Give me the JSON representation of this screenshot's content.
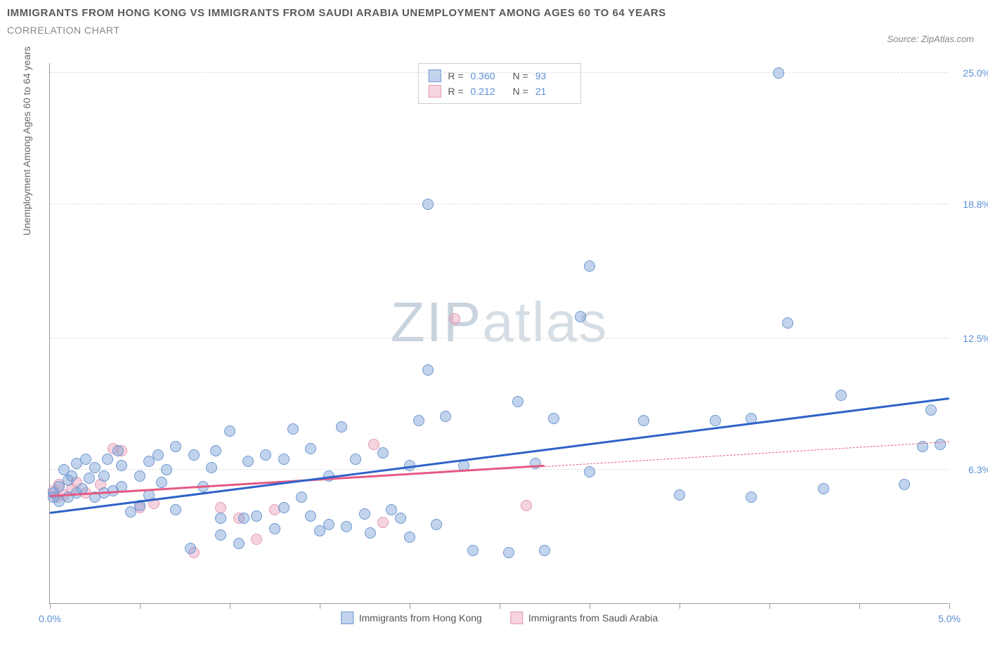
{
  "title": "IMMIGRANTS FROM HONG KONG VS IMMIGRANTS FROM SAUDI ARABIA UNEMPLOYMENT AMONG AGES 60 TO 64 YEARS",
  "subtitle": "CORRELATION CHART",
  "source_label": "Source: ZipAtlas.com",
  "y_axis_label": "Unemployment Among Ages 60 to 64 years",
  "watermark_a": "ZIP",
  "watermark_b": "atlas",
  "colors": {
    "series_a_fill": "rgba(120,160,215,0.45)",
    "series_a_stroke": "#6f97cf",
    "series_b_fill": "rgba(235,160,185,0.45)",
    "series_b_stroke": "#e49ab3",
    "trend_a": "#2e62c9",
    "trend_b": "#e55a82",
    "tick_label": "#5b8fd6",
    "grid": "#dddddd"
  },
  "marker_radius": 8,
  "x_axis": {
    "min": 0.0,
    "max": 5.0,
    "ticks": [
      0.0,
      0.5,
      1.0,
      1.5,
      2.0,
      2.5,
      3.0,
      3.5,
      4.0,
      4.5,
      5.0
    ],
    "labeled_ticks": [
      {
        "v": 0.0,
        "label": "0.0%"
      },
      {
        "v": 5.0,
        "label": "5.0%"
      }
    ]
  },
  "y_axis": {
    "min": 0.0,
    "max": 25.5,
    "gridlines": [
      {
        "v": 6.3,
        "label": "6.3%"
      },
      {
        "v": 12.5,
        "label": "12.5%"
      },
      {
        "v": 18.8,
        "label": "18.8%"
      },
      {
        "v": 25.0,
        "label": "25.0%"
      }
    ]
  },
  "stats": [
    {
      "series": "a",
      "R": "0.360",
      "N": "93"
    },
    {
      "series": "b",
      "R": "0.212",
      "N": "21"
    }
  ],
  "bottom_legend": [
    {
      "series": "a",
      "label": "Immigrants from Hong Kong"
    },
    {
      "series": "b",
      "label": "Immigrants from Saudi Arabia"
    }
  ],
  "trend_lines": {
    "a": {
      "x1": 0.0,
      "y1": 4.2,
      "x2": 5.0,
      "y2": 9.6,
      "solid_until_x": 5.0
    },
    "b": {
      "x1": 0.0,
      "y1": 5.0,
      "x2": 5.0,
      "y2": 7.6,
      "solid_until_x": 2.75
    }
  },
  "series_a_points": [
    [
      0.02,
      5.2
    ],
    [
      0.05,
      5.5
    ],
    [
      0.05,
      4.8
    ],
    [
      0.08,
      6.3
    ],
    [
      0.1,
      5.0
    ],
    [
      0.1,
      5.8
    ],
    [
      0.12,
      6.0
    ],
    [
      0.15,
      6.6
    ],
    [
      0.15,
      5.2
    ],
    [
      0.02,
      5.0
    ],
    [
      0.18,
      5.4
    ],
    [
      0.2,
      6.8
    ],
    [
      0.22,
      5.9
    ],
    [
      0.25,
      5.0
    ],
    [
      0.25,
      6.4
    ],
    [
      0.3,
      5.2
    ],
    [
      0.3,
      6.0
    ],
    [
      0.32,
      6.8
    ],
    [
      0.35,
      5.3
    ],
    [
      0.38,
      7.2
    ],
    [
      0.4,
      5.5
    ],
    [
      0.4,
      6.5
    ],
    [
      0.45,
      4.3
    ],
    [
      0.5,
      6.0
    ],
    [
      0.5,
      4.6
    ],
    [
      0.55,
      6.7
    ],
    [
      0.55,
      5.1
    ],
    [
      0.6,
      7.0
    ],
    [
      0.62,
      5.7
    ],
    [
      0.65,
      6.3
    ],
    [
      0.7,
      7.4
    ],
    [
      0.7,
      4.4
    ],
    [
      0.78,
      2.6
    ],
    [
      0.8,
      7.0
    ],
    [
      0.85,
      5.5
    ],
    [
      0.9,
      6.4
    ],
    [
      0.92,
      7.2
    ],
    [
      0.95,
      3.2
    ],
    [
      0.95,
      4.0
    ],
    [
      1.0,
      8.1
    ],
    [
      1.05,
      2.8
    ],
    [
      1.08,
      4.0
    ],
    [
      1.1,
      6.7
    ],
    [
      1.15,
      4.1
    ],
    [
      1.2,
      7.0
    ],
    [
      1.25,
      3.5
    ],
    [
      1.3,
      6.8
    ],
    [
      1.3,
      4.5
    ],
    [
      1.35,
      8.2
    ],
    [
      1.4,
      5.0
    ],
    [
      1.45,
      7.3
    ],
    [
      1.45,
      4.1
    ],
    [
      1.5,
      3.4
    ],
    [
      1.55,
      6.0
    ],
    [
      1.55,
      3.7
    ],
    [
      1.62,
      8.3
    ],
    [
      1.65,
      3.6
    ],
    [
      1.7,
      6.8
    ],
    [
      1.75,
      4.2
    ],
    [
      1.78,
      3.3
    ],
    [
      1.85,
      7.1
    ],
    [
      1.9,
      4.4
    ],
    [
      1.95,
      4.0
    ],
    [
      2.0,
      6.5
    ],
    [
      2.0,
      3.1
    ],
    [
      2.05,
      8.6
    ],
    [
      2.1,
      11.0
    ],
    [
      2.1,
      18.8
    ],
    [
      2.15,
      3.7
    ],
    [
      2.2,
      8.8
    ],
    [
      2.3,
      6.5
    ],
    [
      2.35,
      2.5
    ],
    [
      2.55,
      2.4
    ],
    [
      2.6,
      9.5
    ],
    [
      2.7,
      6.6
    ],
    [
      2.75,
      2.5
    ],
    [
      2.8,
      8.7
    ],
    [
      2.95,
      13.5
    ],
    [
      3.0,
      15.9
    ],
    [
      3.0,
      6.2
    ],
    [
      3.3,
      8.6
    ],
    [
      3.5,
      5.1
    ],
    [
      3.7,
      8.6
    ],
    [
      3.9,
      5.0
    ],
    [
      3.9,
      8.7
    ],
    [
      4.05,
      25.0
    ],
    [
      4.1,
      13.2
    ],
    [
      4.3,
      5.4
    ],
    [
      4.4,
      9.8
    ],
    [
      4.75,
      5.6
    ],
    [
      4.85,
      7.4
    ],
    [
      4.9,
      9.1
    ],
    [
      4.95,
      7.5
    ]
  ],
  "series_b_points": [
    [
      0.02,
      5.3
    ],
    [
      0.04,
      5.0
    ],
    [
      0.05,
      5.6
    ],
    [
      0.08,
      5.1
    ],
    [
      0.12,
      5.4
    ],
    [
      0.15,
      5.7
    ],
    [
      0.2,
      5.2
    ],
    [
      0.28,
      5.6
    ],
    [
      0.35,
      7.3
    ],
    [
      0.4,
      7.2
    ],
    [
      0.5,
      4.5
    ],
    [
      0.58,
      4.7
    ],
    [
      0.8,
      2.4
    ],
    [
      0.95,
      4.5
    ],
    [
      1.05,
      4.0
    ],
    [
      1.15,
      3.0
    ],
    [
      1.25,
      4.4
    ],
    [
      1.8,
      7.5
    ],
    [
      1.85,
      3.8
    ],
    [
      2.25,
      13.4
    ],
    [
      2.65,
      4.6
    ]
  ]
}
